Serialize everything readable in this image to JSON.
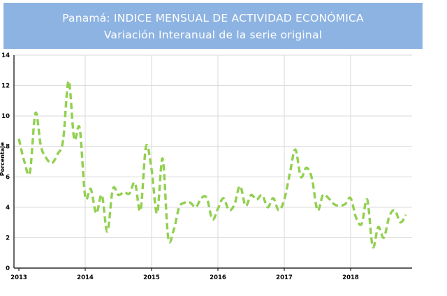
{
  "chart_data": {
    "type": "line",
    "title": "Panamá: INDICE MENSUAL DE ACTIVIDAD ECONÓMICA",
    "subtitle": "Variación Interanual de la serie original",
    "xlabel": "",
    "ylabel": "Porcentaje",
    "ylim": [
      0,
      14
    ],
    "yticks": [
      "0",
      "2",
      "4",
      "6",
      "8",
      "10",
      "12",
      "14"
    ],
    "xticks": [
      "2013",
      "2014",
      "2015",
      "2016",
      "2017",
      "2018"
    ],
    "grid": true,
    "legend": "none",
    "line_color": "#92d050",
    "series": [
      {
        "values": [
          8.5,
          7.0,
          6.3,
          10.2,
          8.0,
          7.2,
          6.9,
          7.5,
          8.4,
          12.3,
          8.5,
          9.2,
          4.7,
          5.2,
          3.6,
          4.8,
          2.4,
          5.2,
          4.8,
          5.0,
          4.9,
          5.6,
          3.8,
          8.0,
          6.5,
          3.6,
          7.2,
          2.0,
          2.5,
          4.0,
          4.3,
          4.3,
          4.0,
          4.6,
          4.6,
          3.2,
          3.9,
          4.6,
          3.8,
          4.2,
          5.4,
          4.1,
          4.8,
          4.5,
          4.8,
          4.0,
          4.6,
          3.8,
          4.5,
          6.2,
          7.8,
          6.0,
          6.6,
          5.9,
          3.8,
          4.8,
          4.6,
          4.2,
          4.1,
          4.2,
          4.6,
          3.3,
          2.9,
          4.5,
          1.4,
          2.7,
          2.0,
          3.4,
          3.8,
          3.0,
          3.5
        ]
      }
    ]
  }
}
